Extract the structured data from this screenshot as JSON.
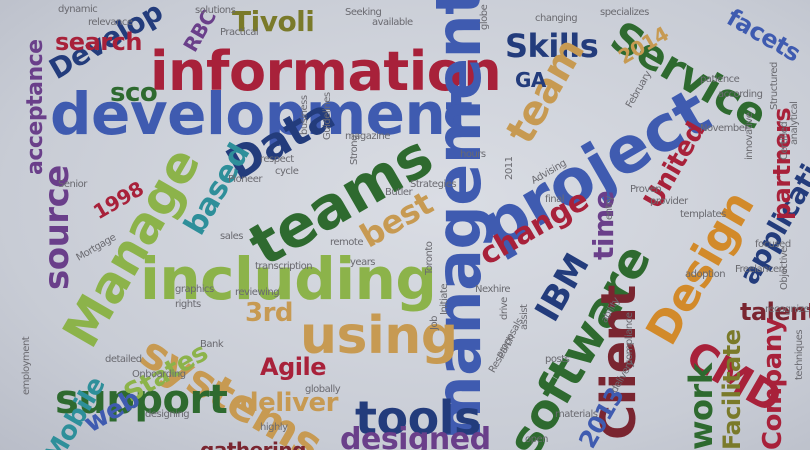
{
  "palette": {
    "red": "#a8213a",
    "navy": "#233c7c",
    "blue": "#3f5bb0",
    "green": "#2e6a2f",
    "lime": "#8cb34a",
    "orange": "#d28a2a",
    "tan": "#c79a52",
    "teal": "#2e8f9a",
    "purple": "#6a3f8a",
    "maroon": "#7a2530",
    "olive": "#7a7a2a",
    "gray": "#6a6a70"
  },
  "words": [
    {
      "id": "information",
      "text": "information",
      "size": 54,
      "color": "red",
      "rot": 0
    },
    {
      "id": "development",
      "text": "development",
      "size": 58,
      "color": "blue",
      "rot": 0
    },
    {
      "id": "management",
      "text": "management",
      "size": 62,
      "color": "blue",
      "rot": -90
    },
    {
      "id": "project",
      "text": "project",
      "size": 64,
      "color": "blue",
      "rot": -30
    },
    {
      "id": "including",
      "text": "including",
      "size": 58,
      "color": "lime",
      "rot": 0
    },
    {
      "id": "teams",
      "text": "teams",
      "size": 58,
      "color": "green",
      "rot": -30
    },
    {
      "id": "software",
      "text": "software",
      "size": 48,
      "color": "green",
      "rot": -60
    },
    {
      "id": "systems",
      "text": "systems",
      "size": 44,
      "color": "tan",
      "rot": 30
    },
    {
      "id": "using",
      "text": "using",
      "size": 52,
      "color": "tan",
      "rot": 0
    },
    {
      "id": "service",
      "text": "Service",
      "size": 42,
      "color": "green",
      "rot": 30
    },
    {
      "id": "manage",
      "text": "Manage",
      "size": 50,
      "color": "lime",
      "rot": -60
    },
    {
      "id": "data",
      "text": "Data",
      "size": 44,
      "color": "navy",
      "rot": -30
    },
    {
      "id": "design",
      "text": "Design",
      "size": 44,
      "color": "orange",
      "rot": -60
    },
    {
      "id": "client",
      "text": "Client",
      "size": 48,
      "color": "maroon",
      "rot": -90
    },
    {
      "id": "cmd",
      "text": "CMD",
      "size": 40,
      "color": "red",
      "rot": 30
    },
    {
      "id": "tools",
      "text": "tools",
      "size": 46,
      "color": "navy",
      "rot": 0
    },
    {
      "id": "support",
      "text": "support",
      "size": 40,
      "color": "green",
      "rot": 0
    },
    {
      "id": "skills",
      "text": "Skills",
      "size": 32,
      "color": "navy",
      "rot": 0
    },
    {
      "id": "team",
      "text": "team",
      "size": 40,
      "color": "tan",
      "rot": -60
    },
    {
      "id": "tivoli",
      "text": "Tivoli",
      "size": 28,
      "color": "olive",
      "rot": 0
    },
    {
      "id": "develop",
      "text": "Develop",
      "size": 28,
      "color": "navy",
      "rot": -30
    },
    {
      "id": "search",
      "text": "search",
      "size": 24,
      "color": "red",
      "rot": 0
    },
    {
      "id": "sco",
      "text": "sco",
      "size": 26,
      "color": "green",
      "rot": 0
    },
    {
      "id": "rbc",
      "text": "RBC",
      "size": 20,
      "color": "purple",
      "rot": -60
    },
    {
      "id": "acceptance",
      "text": "acceptance",
      "size": 22,
      "color": "purple",
      "rot": -90
    },
    {
      "id": "source",
      "text": "source",
      "size": 34,
      "color": "purple",
      "rot": -90
    },
    {
      "id": "based",
      "text": "based",
      "size": 30,
      "color": "teal",
      "rot": -60
    },
    {
      "id": "best",
      "text": "best",
      "size": 32,
      "color": "tan",
      "rot": -30
    },
    {
      "id": "change",
      "text": "change",
      "size": 30,
      "color": "red",
      "rot": -30
    },
    {
      "id": "ibm",
      "text": "IBM",
      "size": 34,
      "color": "navy",
      "rot": -60
    },
    {
      "id": "united",
      "text": "United",
      "size": 26,
      "color": "red",
      "rot": -60
    },
    {
      "id": "time",
      "text": "time",
      "size": 28,
      "color": "purple",
      "rot": -90
    },
    {
      "id": "application",
      "text": "application",
      "size": 28,
      "color": "navy",
      "rot": -60
    },
    {
      "id": "partners",
      "text": "partners",
      "size": 24,
      "color": "red",
      "rot": -90
    },
    {
      "id": "facets",
      "text": "facets",
      "size": 24,
      "color": "blue",
      "rot": 30
    },
    {
      "id": "talent",
      "text": "talent",
      "size": 24,
      "color": "maroon",
      "rot": 0
    },
    {
      "id": "agile",
      "text": "Agile",
      "size": 24,
      "color": "red",
      "rot": 0
    },
    {
      "id": "deliver",
      "text": "deliver",
      "size": 26,
      "color": "tan",
      "rot": 0
    },
    {
      "id": "3rd",
      "text": "3rd",
      "size": 26,
      "color": "tan",
      "rot": 0
    },
    {
      "id": "states",
      "text": "States",
      "size": 26,
      "color": "lime",
      "rot": -30
    },
    {
      "id": "web",
      "text": "web",
      "size": 26,
      "color": "blue",
      "rot": -30
    },
    {
      "id": "mobile",
      "text": "Mobile",
      "size": 26,
      "color": "teal",
      "rot": -60
    },
    {
      "id": "2013",
      "text": "2013",
      "size": 24,
      "color": "blue",
      "rot": -60
    },
    {
      "id": "2014",
      "text": "2014",
      "size": 20,
      "color": "tan",
      "rot": -30
    },
    {
      "id": "1998",
      "text": "1998",
      "size": 20,
      "color": "red",
      "rot": -30
    },
    {
      "id": "ga",
      "text": "GA",
      "size": 20,
      "color": "navy",
      "rot": 0
    },
    {
      "id": "work",
      "text": "work",
      "size": 32,
      "color": "green",
      "rot": -90
    },
    {
      "id": "facilitate",
      "text": "Facilitate",
      "size": 24,
      "color": "olive",
      "rot": -90
    },
    {
      "id": "company",
      "text": "Company",
      "size": 26,
      "color": "red",
      "rot": -90
    },
    {
      "id": "dynamic",
      "text": "dynamic",
      "size": 10,
      "color": "gray",
      "rot": 0
    },
    {
      "id": "relevance",
      "text": "relevance",
      "size": 10,
      "color": "gray",
      "rot": 0
    },
    {
      "id": "solutions",
      "text": "solutions",
      "size": 10,
      "color": "gray",
      "rot": 0
    },
    {
      "id": "seeking",
      "text": "Seeking",
      "size": 10,
      "color": "gray",
      "rot": 0
    },
    {
      "id": "available",
      "text": "available",
      "size": 10,
      "color": "gray",
      "rot": 0
    },
    {
      "id": "changing",
      "text": "changing",
      "size": 10,
      "color": "gray",
      "rot": 0
    },
    {
      "id": "specializes",
      "text": "specializes",
      "size": 10,
      "color": "gray",
      "rot": 0
    },
    {
      "id": "globe",
      "text": "globe",
      "size": 10,
      "color": "gray",
      "rot": -90
    },
    {
      "id": "practical",
      "text": "Practical",
      "size": 10,
      "color": "gray",
      "rot": 0
    },
    {
      "id": "structured",
      "text": "Structured",
      "size": 10,
      "color": "gray",
      "rot": -90
    },
    {
      "id": "patience",
      "text": "patience",
      "size": 10,
      "color": "gray",
      "rot": 0
    },
    {
      "id": "according",
      "text": "according",
      "size": 10,
      "color": "gray",
      "rot": 0
    },
    {
      "id": "analytical",
      "text": "analytical",
      "size": 10,
      "color": "gray",
      "rot": -90
    },
    {
      "id": "certified",
      "text": "Certified",
      "size": 10,
      "color": "gray",
      "rot": -90
    },
    {
      "id": "february",
      "text": "February",
      "size": 10,
      "color": "gray",
      "rot": -60
    },
    {
      "id": "november",
      "text": "November",
      "size": 10,
      "color": "gray",
      "rot": 0
    },
    {
      "id": "innovative",
      "text": "innovative",
      "size": 10,
      "color": "gray",
      "rot": -90
    },
    {
      "id": "respect",
      "text": "respect",
      "size": 10,
      "color": "gray",
      "rot": 0
    },
    {
      "id": "cycle",
      "text": "cycle",
      "size": 10,
      "color": "gray",
      "rot": 0
    },
    {
      "id": "pioneer",
      "text": "Pioneer",
      "size": 10,
      "color": "gray",
      "rot": 0
    },
    {
      "id": "magazine",
      "text": "magazine",
      "size": 10,
      "color": "gray",
      "rot": 0
    },
    {
      "id": "strong",
      "text": "Strong",
      "size": 10,
      "color": "gray",
      "rot": -90
    },
    {
      "id": "butler",
      "text": "Butler",
      "size": 10,
      "color": "gray",
      "rot": 0
    },
    {
      "id": "strategies",
      "text": "Strategies",
      "size": 10,
      "color": "gray",
      "rot": 0
    },
    {
      "id": "advising",
      "text": "Advising",
      "size": 10,
      "color": "gray",
      "rot": -30
    },
    {
      "id": "entry",
      "text": "entry",
      "size": 10,
      "color": "gray",
      "rot": -90
    },
    {
      "id": "proven",
      "text": "Proven",
      "size": 10,
      "color": "gray",
      "rot": 0
    },
    {
      "id": "provider",
      "text": "provider",
      "size": 10,
      "color": "gray",
      "rot": 0
    },
    {
      "id": "templates",
      "text": "templates",
      "size": 10,
      "color": "gray",
      "rot": 0
    },
    {
      "id": "focused",
      "text": "focused",
      "size": 10,
      "color": "gray",
      "rot": 0
    },
    {
      "id": "objective",
      "text": "Objective",
      "size": 10,
      "color": "gray",
      "rot": -90
    },
    {
      "id": "freelancers",
      "text": "Freelancers",
      "size": 10,
      "color": "gray",
      "rot": 0
    },
    {
      "id": "recognize",
      "text": "recognize",
      "size": 10,
      "color": "gray",
      "rot": 0
    },
    {
      "id": "techniques",
      "text": "techniques",
      "size": 10,
      "color": "gray",
      "rot": -90
    },
    {
      "id": "adoption",
      "text": "adoption",
      "size": 10,
      "color": "gray",
      "rot": 0
    },
    {
      "id": "ability",
      "text": "ability",
      "size": 10,
      "color": "gray",
      "rot": -60
    },
    {
      "id": "compliance",
      "text": "compliance",
      "size": 10,
      "color": "gray",
      "rot": -90
    },
    {
      "id": "delivery",
      "text": "delivery",
      "size": 10,
      "color": "gray",
      "rot": -60
    },
    {
      "id": "research",
      "text": "Research",
      "size": 10,
      "color": "gray",
      "rot": -60
    },
    {
      "id": "proposals",
      "text": "proposals",
      "size": 10,
      "color": "gray",
      "rot": -60
    },
    {
      "id": "posts",
      "text": "posts",
      "size": 10,
      "color": "gray",
      "rot": 0
    },
    {
      "id": "assist",
      "text": "assist",
      "size": 10,
      "color": "gray",
      "rot": -90
    },
    {
      "id": "drive",
      "text": "drive",
      "size": 10,
      "color": "gray",
      "rot": -90
    },
    {
      "id": "initiate",
      "text": "Initiate",
      "size": 10,
      "color": "gray",
      "rot": -90
    },
    {
      "id": "toronto",
      "text": "Toronto",
      "size": 10,
      "color": "gray",
      "rot": -90
    },
    {
      "id": "remote",
      "text": "remote",
      "size": 10,
      "color": "gray",
      "rot": 0
    },
    {
      "id": "years",
      "text": "years",
      "size": 10,
      "color": "gray",
      "rot": 0
    },
    {
      "id": "nexhire",
      "text": "Nexhire",
      "size": 10,
      "color": "gray",
      "rot": 0
    },
    {
      "id": "transcription",
      "text": "transcription",
      "size": 10,
      "color": "gray",
      "rot": 0
    },
    {
      "id": "reviewing",
      "text": "reviewing",
      "size": 10,
      "color": "gray",
      "rot": 0
    },
    {
      "id": "graphics",
      "text": "graphics",
      "size": 10,
      "color": "gray",
      "rot": 0
    },
    {
      "id": "rights",
      "text": "rights",
      "size": 10,
      "color": "gray",
      "rot": 0
    },
    {
      "id": "sales",
      "text": "sales",
      "size": 10,
      "color": "gray",
      "rot": 0
    },
    {
      "id": "bank",
      "text": "Bank",
      "size": 10,
      "color": "gray",
      "rot": 0
    },
    {
      "id": "onboarding",
      "text": "Onboarding",
      "size": 10,
      "color": "gray",
      "rot": 0
    },
    {
      "id": "detailed",
      "text": "detailed",
      "size": 10,
      "color": "gray",
      "rot": 0
    },
    {
      "id": "designing",
      "text": "designing",
      "size": 10,
      "color": "gray",
      "rot": 0
    },
    {
      "id": "globally",
      "text": "globally",
      "size": 10,
      "color": "gray",
      "rot": 0
    },
    {
      "id": "highly",
      "text": "highly",
      "size": 10,
      "color": "gray",
      "rot": 0
    },
    {
      "id": "employment",
      "text": "employment",
      "size": 10,
      "color": "gray",
      "rot": -90
    },
    {
      "id": "senior",
      "text": "Senior",
      "size": 10,
      "color": "gray",
      "rot": 0
    },
    {
      "id": "mortgage",
      "text": "Mortgage",
      "size": 10,
      "color": "gray",
      "rot": -30
    },
    {
      "id": "gathering",
      "text": "gathering",
      "size": 20,
      "color": "maroon",
      "rot": 0
    },
    {
      "id": "designed",
      "text": "designed",
      "size": 30,
      "color": "purple",
      "rot": 0
    },
    {
      "id": "business",
      "text": "business",
      "size": 10,
      "color": "gray",
      "rot": -90
    },
    {
      "id": "guidelines",
      "text": "Guidelines",
      "size": 10,
      "color": "gray",
      "rot": -90
    },
    {
      "id": "2011",
      "text": "2011",
      "size": 10,
      "color": "gray",
      "rot": -90
    },
    {
      "id": "final",
      "text": "final",
      "size": 10,
      "color": "gray",
      "rot": 0
    },
    {
      "id": "open",
      "text": "open",
      "size": 10,
      "color": "gray",
      "rot": 0
    },
    {
      "id": "materials",
      "text": "materials",
      "size": 10,
      "color": "gray",
      "rot": 0
    },
    {
      "id": "job",
      "text": "Job",
      "size": 10,
      "color": "gray",
      "rot": -90
    },
    {
      "id": "hours",
      "text": "hours",
      "size": 10,
      "color": "gray",
      "rot": 0
    }
  ]
}
